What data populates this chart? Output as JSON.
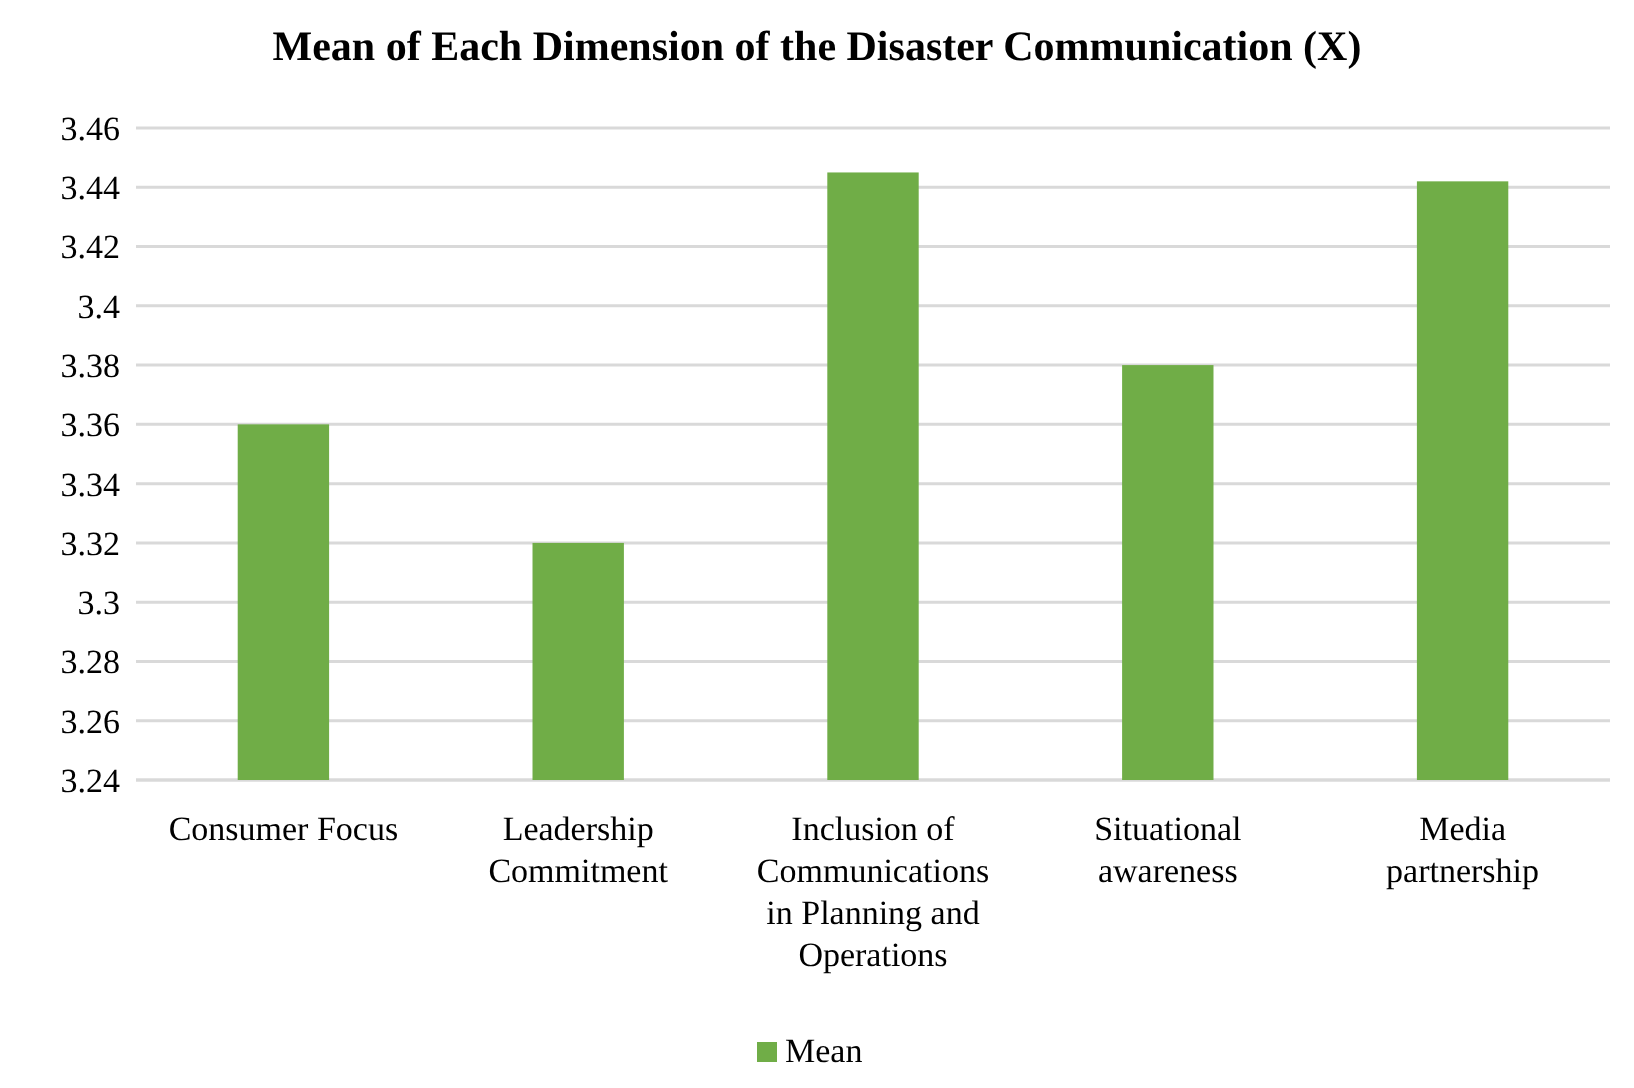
{
  "chart_data": {
    "type": "bar",
    "title": "Mean of Each Dimension of the Disaster Communication (X)",
    "categories": [
      "Consumer Focus",
      "Leadership Commitment",
      "Inclusion of Communications in Planning and Operations",
      "Situational awareness",
      "Media partnership"
    ],
    "series": [
      {
        "name": "Mean",
        "color": "#70ad47",
        "values": [
          3.36,
          3.32,
          3.445,
          3.38,
          3.442
        ]
      }
    ],
    "ylim": [
      3.24,
      3.46
    ],
    "yticks": [
      3.24,
      3.26,
      3.28,
      3.3,
      3.32,
      3.34,
      3.36,
      3.38,
      3.4,
      3.42,
      3.44,
      3.46
    ],
    "grid": "y",
    "legend": "bottom"
  }
}
